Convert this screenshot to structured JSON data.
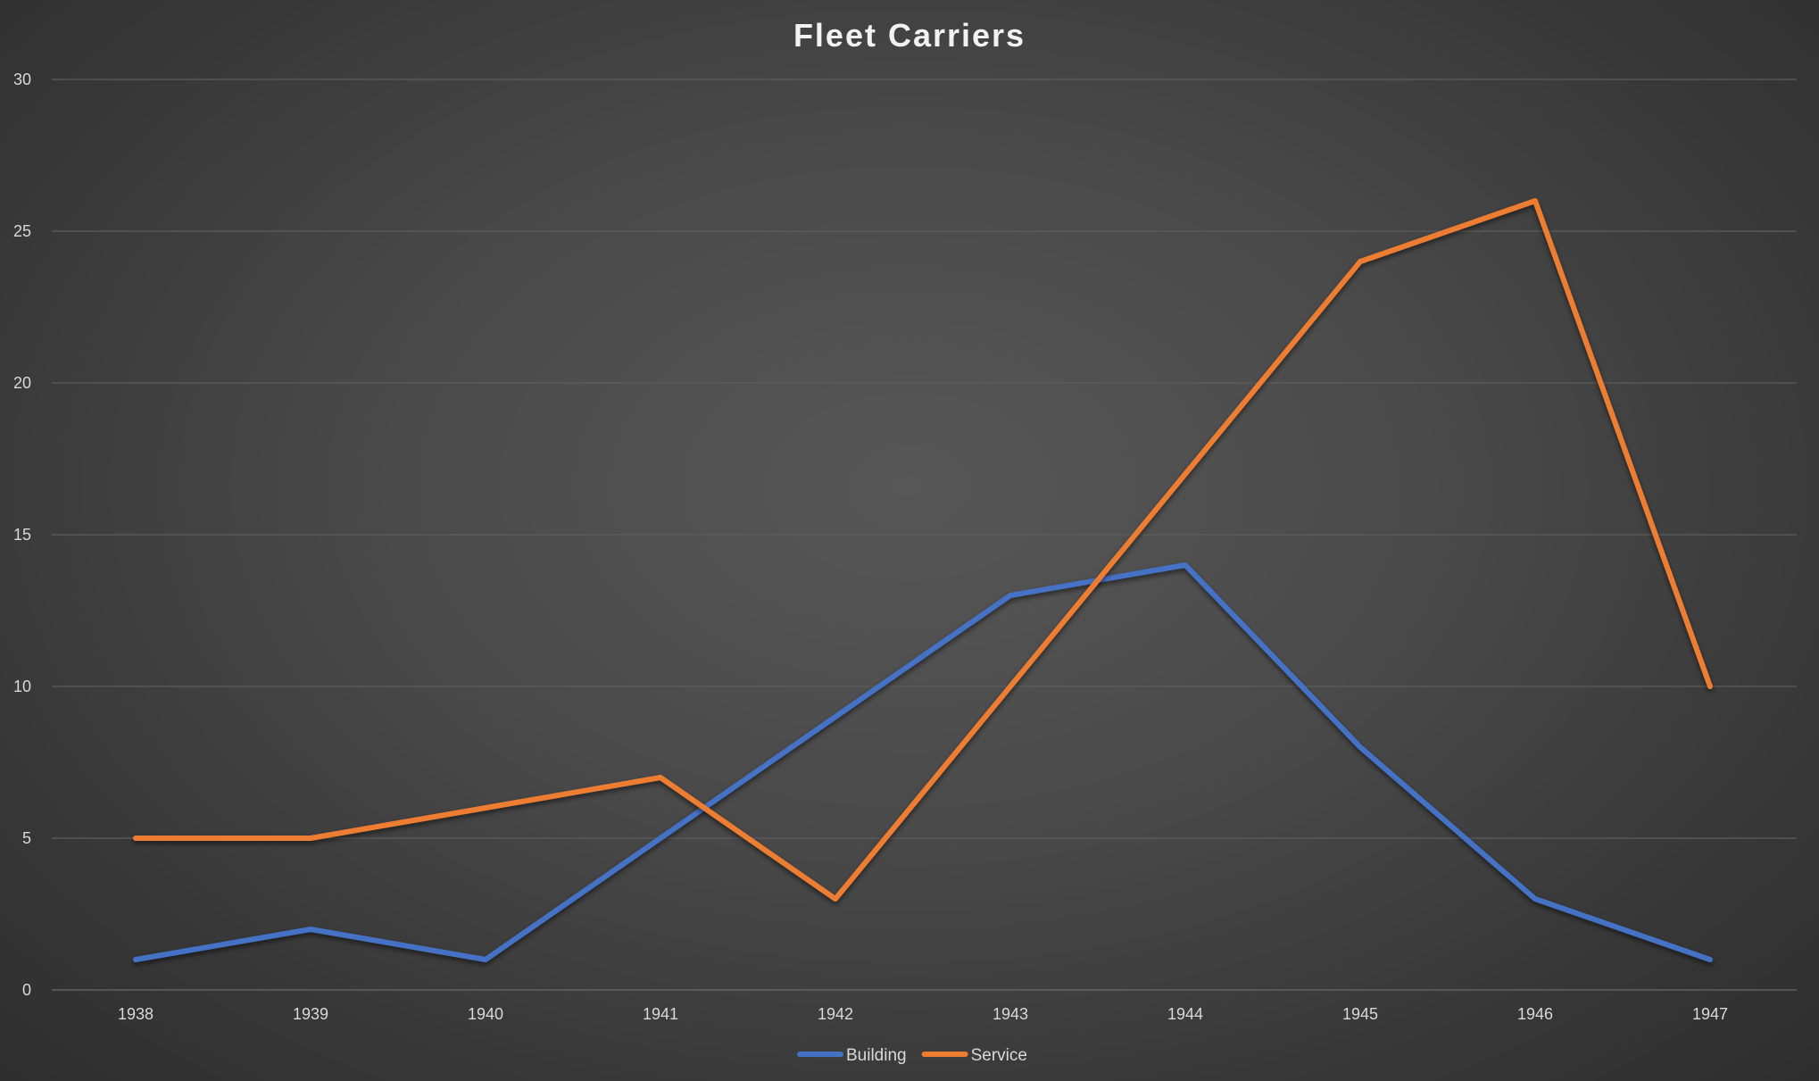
{
  "chart_data": {
    "type": "line",
    "title": "Fleet Carriers",
    "xlabel": "",
    "ylabel": "",
    "categories": [
      "1938",
      "1939",
      "1940",
      "1941",
      "1942",
      "1943",
      "1944",
      "1945",
      "1946",
      "1947"
    ],
    "ylim": [
      0,
      30
    ],
    "yticks": [
      0,
      5,
      10,
      15,
      20,
      25,
      30
    ],
    "grid": true,
    "legend_position": "bottom",
    "series": [
      {
        "name": "Building",
        "color": "#4472c4",
        "values": [
          1,
          2,
          1,
          5,
          9,
          13,
          14,
          8,
          3,
          1
        ]
      },
      {
        "name": "Service",
        "color": "#ed7d31",
        "values": [
          5,
          5,
          6,
          7,
          3,
          10,
          17,
          24,
          26,
          10
        ]
      }
    ]
  }
}
